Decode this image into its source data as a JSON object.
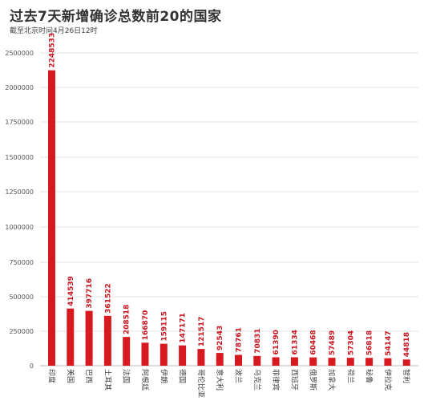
{
  "header": {
    "title": "过去7天新增确诊总数前20的国家",
    "subtitle": "截至北京时间4月26日12时"
  },
  "colors": {
    "bar": "#d71920",
    "label": "#c8141e",
    "grid": "#e3e3e3"
  },
  "chart_data": {
    "type": "bar",
    "title": "过去7天新增确诊总数前20的国家",
    "subtitle": "截至北京时间4月26日12时",
    "categories": [
      "印度",
      "美国",
      "巴西",
      "土耳其",
      "法国",
      "阿根廷",
      "伊朗",
      "德国",
      "哥伦比亚",
      "意大利",
      "波兰",
      "乌克兰",
      "菲律宾",
      "西班牙",
      "俄罗斯",
      "加拿大",
      "荷兰",
      "秘鲁",
      "伊拉克",
      "智利"
    ],
    "values": [
      2248533,
      414539,
      397716,
      361522,
      208518,
      166870,
      159115,
      147171,
      121517,
      92543,
      78761,
      70831,
      61390,
      61334,
      60468,
      57489,
      57304,
      56818,
      54147,
      44818
    ],
    "yticks": [
      0,
      250000,
      500000,
      750000,
      1000000,
      1250000,
      1500000,
      1750000,
      2000000,
      2500000
    ],
    "ylim": [
      0,
      2500000
    ],
    "grid": true,
    "data_labels": true
  }
}
